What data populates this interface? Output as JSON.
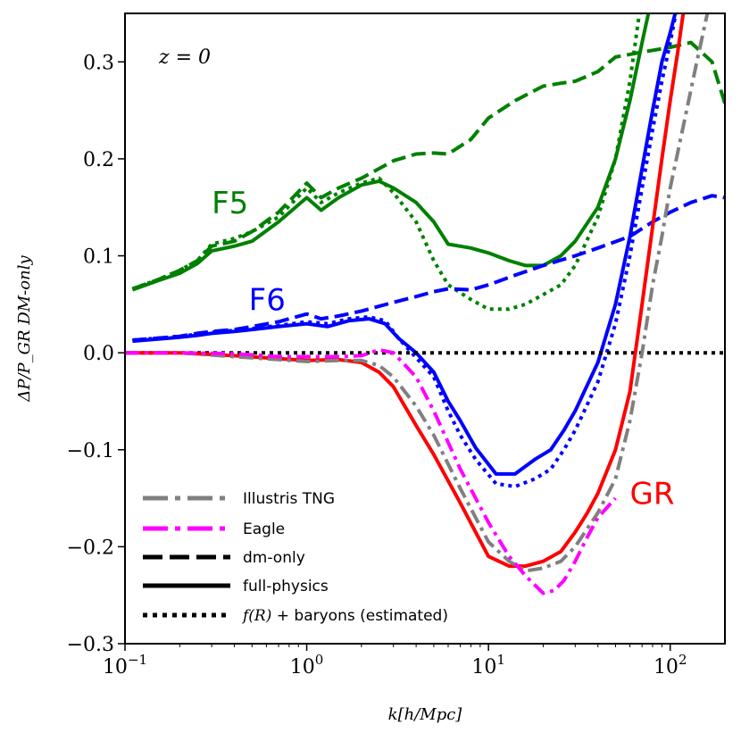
{
  "chart_data": {
    "type": "line",
    "xscale": "log",
    "xlim": [
      0.1,
      200
    ],
    "ylim": [
      -0.3,
      0.35
    ],
    "xlabel": "k[h/Mpc]",
    "ylabel": "ΔP/P_GR DM-only",
    "annotation": "z = 0",
    "x_ticks": [
      {
        "value": 0.1,
        "base": "10",
        "exp": "−1"
      },
      {
        "value": 1,
        "base": "10",
        "exp": "0"
      },
      {
        "value": 10,
        "base": "10",
        "exp": "1"
      },
      {
        "value": 100,
        "base": "10",
        "exp": "2"
      }
    ],
    "y_ticks": [
      {
        "value": -0.3,
        "label": "−0.3"
      },
      {
        "value": -0.2,
        "label": "−0.2"
      },
      {
        "value": -0.1,
        "label": "−0.1"
      },
      {
        "value": 0.0,
        "label": "0.0"
      },
      {
        "value": 0.1,
        "label": "0.1"
      },
      {
        "value": 0.2,
        "label": "0.2"
      },
      {
        "value": 0.3,
        "label": "0.3"
      }
    ],
    "model_labels": [
      {
        "text": "F5",
        "color": "#008000",
        "x": 0.3,
        "y": 0.155
      },
      {
        "text": "F6",
        "color": "#0000ff",
        "x": 0.48,
        "y": 0.055
      },
      {
        "text": "GR",
        "color": "#ff0000",
        "x": 60,
        "y": -0.145
      }
    ],
    "legend": {
      "location": "lower-left",
      "entries": [
        {
          "label": "Illustris TNG",
          "style": "dashdot",
          "color": "#808080"
        },
        {
          "label": "Eagle",
          "style": "dashdot",
          "color": "#ff00ff"
        },
        {
          "label": "dm-only",
          "style": "dashed",
          "color": "#000000"
        },
        {
          "label": "full-physics",
          "style": "solid",
          "color": "#000000"
        },
        {
          "label_math": "f(R)",
          "label_rest": " + baryons (estimated)",
          "style": "dotted",
          "color": "#000000"
        }
      ]
    },
    "series": [
      {
        "name": "F5 dm-only",
        "color": "#008000",
        "style": "dashed",
        "x": [
          0.11,
          0.15,
          0.2,
          0.25,
          0.3,
          0.4,
          0.5,
          0.7,
          1.0,
          1.2,
          1.5,
          2.0,
          3.0,
          4.0,
          5.0,
          6.0,
          8.0,
          10,
          14,
          20,
          25,
          30,
          40,
          50,
          70,
          100,
          130,
          170,
          200
        ],
        "y": [
          0.066,
          0.075,
          0.085,
          0.095,
          0.11,
          0.115,
          0.125,
          0.145,
          0.175,
          0.16,
          0.17,
          0.18,
          0.198,
          0.205,
          0.206,
          0.205,
          0.22,
          0.242,
          0.26,
          0.275,
          0.278,
          0.28,
          0.29,
          0.305,
          0.31,
          0.315,
          0.32,
          0.3,
          0.257
        ]
      },
      {
        "name": "F5 full-physics",
        "color": "#008000",
        "style": "solid",
        "x": [
          0.11,
          0.15,
          0.2,
          0.25,
          0.3,
          0.4,
          0.5,
          0.7,
          1.0,
          1.2,
          1.5,
          2.0,
          2.5,
          3.0,
          4.0,
          5.0,
          6.0,
          8.0,
          10,
          13,
          16,
          20,
          25,
          30,
          40,
          50,
          60,
          70,
          80
        ],
        "y": [
          0.065,
          0.074,
          0.082,
          0.092,
          0.105,
          0.11,
          0.115,
          0.135,
          0.16,
          0.147,
          0.16,
          0.173,
          0.177,
          0.17,
          0.155,
          0.135,
          0.112,
          0.108,
          0.103,
          0.095,
          0.09,
          0.09,
          0.1,
          0.115,
          0.15,
          0.2,
          0.26,
          0.32,
          0.37
        ]
      },
      {
        "name": "F5 f(R)+baryons",
        "color": "#008000",
        "style": "dotted",
        "x": [
          0.11,
          0.15,
          0.2,
          0.25,
          0.3,
          0.4,
          0.5,
          0.7,
          1.0,
          1.2,
          1.5,
          2.0,
          2.5,
          3.0,
          4.0,
          5.0,
          6.0,
          8.0,
          10,
          13,
          16,
          20,
          25,
          30,
          40,
          50,
          60,
          70
        ],
        "y": [
          0.066,
          0.075,
          0.085,
          0.095,
          0.112,
          0.118,
          0.125,
          0.14,
          0.17,
          0.155,
          0.165,
          0.175,
          0.18,
          0.165,
          0.135,
          0.095,
          0.07,
          0.055,
          0.045,
          0.045,
          0.05,
          0.06,
          0.07,
          0.09,
          0.14,
          0.2,
          0.28,
          0.37
        ]
      },
      {
        "name": "F6 dm-only",
        "color": "#0000ff",
        "style": "dashed",
        "x": [
          0.11,
          0.15,
          0.2,
          0.25,
          0.3,
          0.4,
          0.5,
          0.7,
          1.0,
          1.2,
          1.5,
          2.0,
          3.0,
          4.0,
          5.0,
          6.0,
          8.0,
          10,
          14,
          20,
          30,
          40,
          60,
          80,
          100,
          130,
          170,
          200
        ],
        "y": [
          0.013,
          0.015,
          0.017,
          0.02,
          0.022,
          0.024,
          0.027,
          0.032,
          0.04,
          0.035,
          0.038,
          0.043,
          0.052,
          0.058,
          0.063,
          0.066,
          0.065,
          0.07,
          0.08,
          0.09,
          0.1,
          0.108,
          0.12,
          0.135,
          0.145,
          0.155,
          0.162,
          0.16
        ]
      },
      {
        "name": "F6 full-physics",
        "color": "#0000ff",
        "style": "solid",
        "x": [
          0.11,
          0.15,
          0.2,
          0.25,
          0.3,
          0.4,
          0.5,
          0.7,
          1.0,
          1.3,
          1.7,
          2.2,
          2.7,
          3.2,
          4.0,
          5.0,
          6.0,
          7.0,
          8.5,
          11,
          14,
          18,
          22,
          26,
          30,
          40,
          50,
          60,
          70,
          80,
          90,
          100,
          110
        ],
        "y": [
          0.012,
          0.014,
          0.016,
          0.018,
          0.02,
          0.022,
          0.024,
          0.027,
          0.03,
          0.027,
          0.033,
          0.035,
          0.03,
          0.015,
          0.0,
          -0.02,
          -0.05,
          -0.07,
          -0.098,
          -0.125,
          -0.125,
          -0.11,
          -0.1,
          -0.08,
          -0.06,
          -0.01,
          0.05,
          0.12,
          0.19,
          0.25,
          0.3,
          0.33,
          0.36
        ]
      },
      {
        "name": "F6 f(R)+baryons",
        "color": "#0000ff",
        "style": "dotted",
        "x": [
          0.11,
          0.15,
          0.2,
          0.25,
          0.3,
          0.4,
          0.5,
          0.7,
          1.0,
          1.3,
          1.7,
          2.2,
          2.7,
          3.2,
          4.0,
          5.0,
          6.0,
          7.0,
          8.5,
          11,
          14,
          18,
          22,
          26,
          30,
          40,
          50,
          60,
          70,
          80,
          90,
          100,
          110
        ],
        "y": [
          0.013,
          0.015,
          0.017,
          0.019,
          0.021,
          0.023,
          0.025,
          0.028,
          0.032,
          0.03,
          0.035,
          0.037,
          0.033,
          0.015,
          -0.005,
          -0.025,
          -0.06,
          -0.085,
          -0.11,
          -0.135,
          -0.138,
          -0.13,
          -0.12,
          -0.1,
          -0.08,
          -0.03,
          0.03,
          0.1,
          0.17,
          0.23,
          0.28,
          0.32,
          0.36
        ]
      },
      {
        "name": "GR f(R)+baryons (zero line)",
        "color": "#000000",
        "style": "dotted",
        "x": [
          0.1,
          200
        ],
        "y": [
          0.0,
          0.0
        ]
      },
      {
        "name": "GR full-physics",
        "color": "#ff0000",
        "style": "solid",
        "x": [
          0.1,
          0.2,
          0.4,
          0.7,
          1.0,
          1.5,
          2.0,
          2.5,
          3.0,
          4.0,
          5.0,
          7.0,
          10,
          13,
          16,
          20,
          25,
          30,
          35,
          40,
          50,
          60,
          70,
          80,
          90,
          100,
          110,
          120
        ],
        "y": [
          0.0,
          0.0,
          -0.003,
          -0.006,
          -0.008,
          -0.007,
          -0.01,
          -0.02,
          -0.035,
          -0.075,
          -0.105,
          -0.155,
          -0.21,
          -0.22,
          -0.22,
          -0.215,
          -0.205,
          -0.185,
          -0.165,
          -0.145,
          -0.1,
          -0.04,
          0.05,
          0.13,
          0.2,
          0.26,
          0.31,
          0.36
        ]
      },
      {
        "name": "Illustris TNG",
        "color": "#808080",
        "style": "dashdot",
        "x": [
          0.1,
          0.2,
          0.4,
          0.7,
          1.0,
          1.5,
          2.0,
          2.5,
          3.0,
          4.0,
          5.0,
          7.0,
          10,
          13,
          16,
          20,
          25,
          30,
          40,
          50,
          60,
          70,
          80,
          90,
          100,
          120,
          140,
          160
        ],
        "y": [
          0.0,
          0.0,
          -0.004,
          -0.007,
          -0.009,
          -0.008,
          -0.008,
          -0.013,
          -0.025,
          -0.055,
          -0.085,
          -0.14,
          -0.195,
          -0.215,
          -0.225,
          -0.222,
          -0.215,
          -0.2,
          -0.165,
          -0.13,
          -0.07,
          0.0,
          0.07,
          0.12,
          0.17,
          0.24,
          0.3,
          0.35
        ]
      },
      {
        "name": "Eagle",
        "color": "#ff00ff",
        "style": "dashdot",
        "x": [
          0.1,
          0.2,
          0.4,
          0.7,
          1.0,
          1.5,
          2.0,
          2.5,
          3.0,
          4.0,
          5.0,
          7.0,
          10,
          13,
          16,
          20,
          23,
          26,
          30,
          35,
          40,
          50
        ],
        "y": [
          0.0,
          0.0,
          -0.001,
          -0.004,
          -0.004,
          -0.004,
          -0.003,
          0.003,
          0.0,
          -0.025,
          -0.06,
          -0.12,
          -0.175,
          -0.21,
          -0.23,
          -0.248,
          -0.245,
          -0.235,
          -0.215,
          -0.19,
          -0.17,
          -0.15
        ]
      }
    ]
  }
}
